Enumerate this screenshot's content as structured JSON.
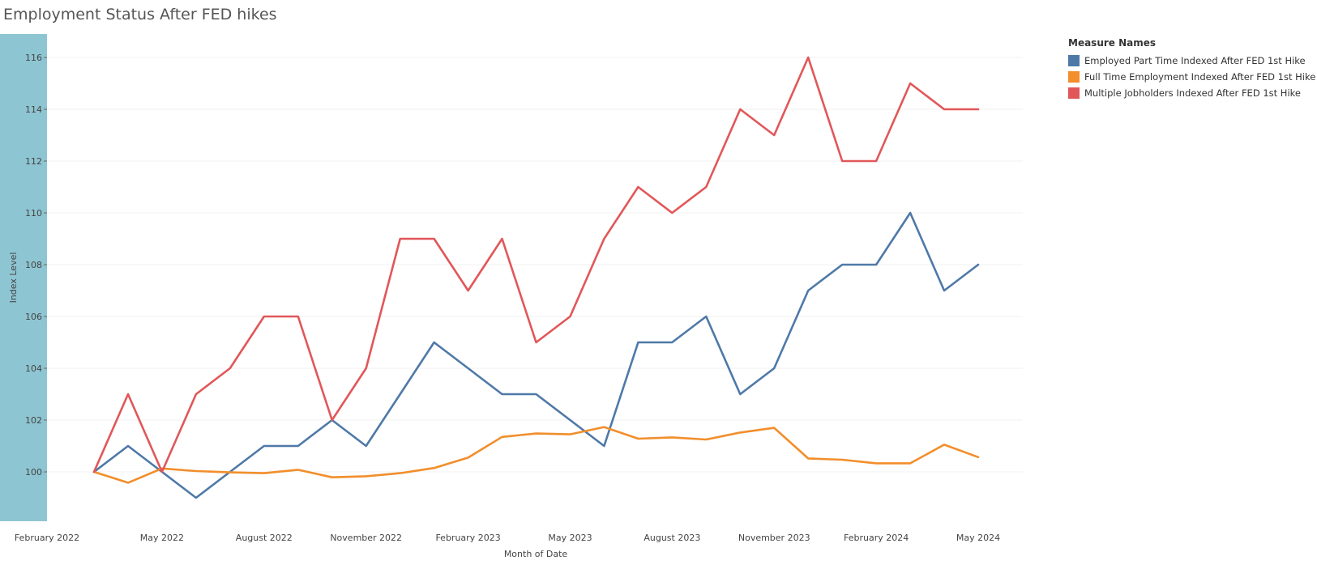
{
  "chart_data": {
    "type": "line",
    "title": "Employment Status After FED hikes",
    "xlabel": "Month of Date",
    "ylabel": "Index Level",
    "ylim": [
      98.2,
      117
    ],
    "y_ticks": [
      100,
      102,
      104,
      106,
      108,
      110,
      112,
      114,
      116
    ],
    "x": [
      "2022-03",
      "2022-04",
      "2022-05",
      "2022-06",
      "2022-07",
      "2022-08",
      "2022-09",
      "2022-10",
      "2022-11",
      "2022-12",
      "2023-01",
      "2023-02",
      "2023-03",
      "2023-04",
      "2023-05",
      "2023-06",
      "2023-07",
      "2023-08",
      "2023-09",
      "2023-10",
      "2023-11",
      "2023-12",
      "2024-01",
      "2024-02",
      "2024-03",
      "2024-04",
      "2024-05"
    ],
    "x_tick_labels": [
      {
        "date": "2022-02",
        "label": "February 2022"
      },
      {
        "date": "2022-05",
        "label": "May 2022"
      },
      {
        "date": "2022-08",
        "label": "August 2022"
      },
      {
        "date": "2022-11",
        "label": "November 2022"
      },
      {
        "date": "2023-02",
        "label": "February 2023"
      },
      {
        "date": "2023-05",
        "label": "May 2023"
      },
      {
        "date": "2023-08",
        "label": "August 2023"
      },
      {
        "date": "2023-11",
        "label": "November 2023"
      },
      {
        "date": "2024-02",
        "label": "February 2024"
      },
      {
        "date": "2024-05",
        "label": "May 2024"
      }
    ],
    "grid": true,
    "legend_position": "top-right",
    "legend_title": "Measure Names",
    "series": [
      {
        "name": "Employed Part Time Indexed After FED 1st Hike",
        "color": "#4e79a7",
        "values": [
          100,
          101,
          100,
          99,
          100,
          101,
          101,
          102,
          101,
          103,
          105,
          104,
          103,
          103,
          102,
          101,
          105,
          105,
          106,
          103,
          104,
          107,
          108,
          108,
          110,
          107,
          108
        ]
      },
      {
        "name": "Full Time  Employment Indexed After FED 1st Hike",
        "color": "#f28e2b",
        "values": [
          100,
          99.58,
          100.13,
          100.03,
          99.98,
          99.95,
          100.08,
          99.79,
          99.83,
          99.95,
          100.15,
          100.55,
          101.35,
          101.48,
          101.45,
          101.73,
          101.28,
          101.33,
          101.25,
          101.52,
          101.7,
          100.52,
          100.47,
          100.33,
          100.33,
          101.05,
          100.57
        ]
      },
      {
        "name": "Multiple Jobholders Indexed After FED 1st Hike",
        "color": "#e15759",
        "values": [
          100,
          103,
          100,
          103,
          104,
          106,
          106,
          102,
          104,
          109,
          109,
          107,
          109,
          105,
          106,
          109,
          111,
          110,
          111,
          114,
          113,
          116,
          112,
          112,
          115,
          114,
          114
        ]
      }
    ]
  },
  "colors": {
    "axis_band": "#8ec5d2",
    "grid": "#f0f0f0",
    "text": "#555555"
  }
}
